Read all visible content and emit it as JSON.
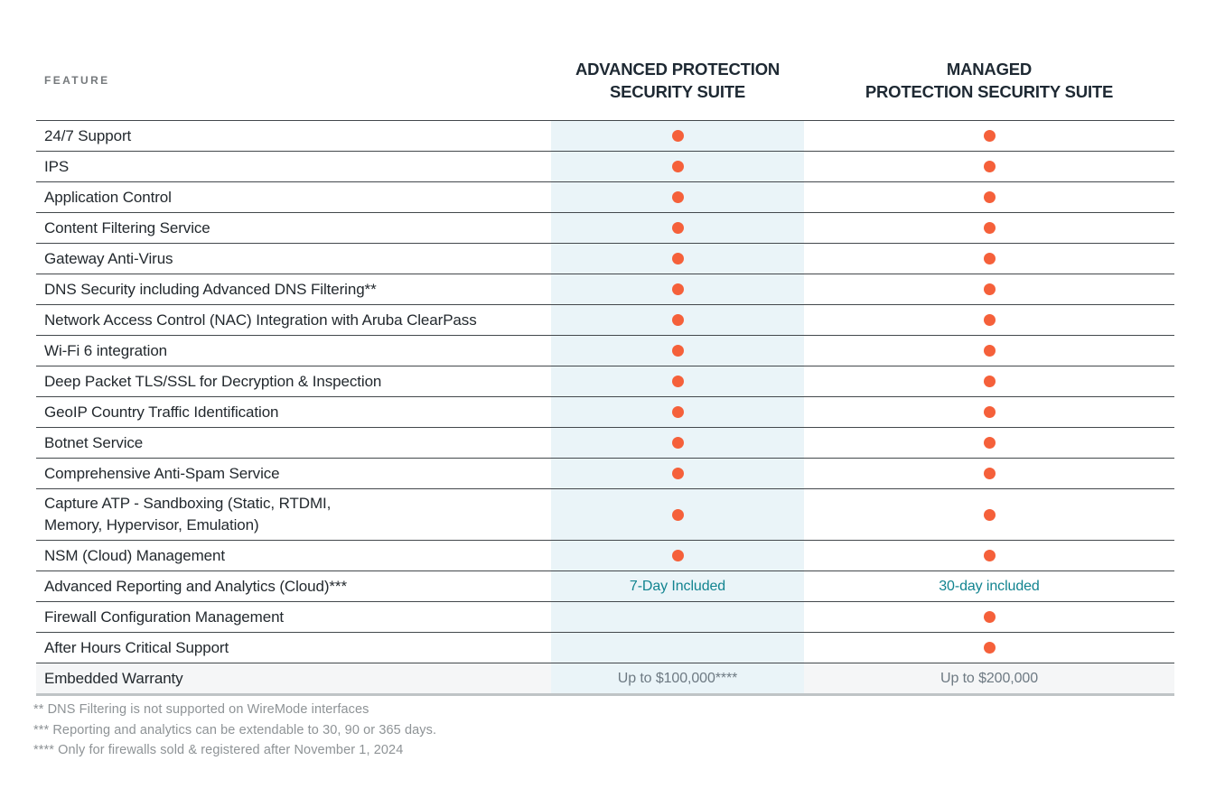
{
  "table": {
    "feature_header": "FEATURE",
    "columns": [
      {
        "id": "advanced",
        "label": "ADVANCED PROTECTION\nSECURITY SUITE"
      },
      {
        "id": "managed",
        "label": "MANAGED\nPROTECTION SECURITY SUITE"
      }
    ],
    "rows": [
      {
        "feature": "24/7 Support",
        "advanced": {
          "type": "dot"
        },
        "managed": {
          "type": "dot"
        }
      },
      {
        "feature": "IPS",
        "advanced": {
          "type": "dot"
        },
        "managed": {
          "type": "dot"
        }
      },
      {
        "feature": "Application Control",
        "advanced": {
          "type": "dot"
        },
        "managed": {
          "type": "dot"
        }
      },
      {
        "feature": "Content Filtering Service",
        "advanced": {
          "type": "dot"
        },
        "managed": {
          "type": "dot"
        }
      },
      {
        "feature": "Gateway Anti-Virus",
        "advanced": {
          "type": "dot"
        },
        "managed": {
          "type": "dot"
        }
      },
      {
        "feature": "DNS Security including Advanced DNS Filtering**",
        "advanced": {
          "type": "dot"
        },
        "managed": {
          "type": "dot"
        }
      },
      {
        "feature": "Network Access Control (NAC) Integration with Aruba ClearPass",
        "advanced": {
          "type": "dot"
        },
        "managed": {
          "type": "dot"
        }
      },
      {
        "feature": "Wi-Fi 6 integration",
        "advanced": {
          "type": "dot"
        },
        "managed": {
          "type": "dot"
        }
      },
      {
        "feature": "Deep Packet TLS/SSL for Decryption & Inspection",
        "advanced": {
          "type": "dot"
        },
        "managed": {
          "type": "dot"
        }
      },
      {
        "feature": "GeoIP Country Traffic Identification",
        "advanced": {
          "type": "dot"
        },
        "managed": {
          "type": "dot"
        }
      },
      {
        "feature": "Botnet Service",
        "advanced": {
          "type": "dot"
        },
        "managed": {
          "type": "dot"
        }
      },
      {
        "feature": "Comprehensive Anti-Spam Service",
        "advanced": {
          "type": "dot"
        },
        "managed": {
          "type": "dot"
        }
      },
      {
        "feature": "Capture ATP -  Sandboxing (Static, RTDMI,\nMemory, Hypervisor, Emulation)",
        "tall": true,
        "advanced": {
          "type": "dot"
        },
        "managed": {
          "type": "dot"
        }
      },
      {
        "feature": "NSM (Cloud) Management",
        "advanced": {
          "type": "dot"
        },
        "managed": {
          "type": "dot"
        }
      },
      {
        "feature": "Advanced Reporting and Analytics (Cloud)***",
        "advanced": {
          "type": "text",
          "text": "7-Day Included",
          "color": "teal"
        },
        "managed": {
          "type": "text",
          "text": "30-day included",
          "color": "teal"
        }
      },
      {
        "feature": "Firewall Configuration Management",
        "advanced": {
          "type": "none"
        },
        "managed": {
          "type": "dot"
        }
      },
      {
        "feature": "After Hours Critical Support",
        "advanced": {
          "type": "none"
        },
        "managed": {
          "type": "dot"
        }
      },
      {
        "feature": "Embedded Warranty",
        "shaded": true,
        "advanced": {
          "type": "text",
          "text": "Up to $100,000****",
          "color": "gray"
        },
        "managed": {
          "type": "text",
          "text": "Up to $200,000",
          "color": "gray"
        }
      }
    ]
  },
  "footnotes": [
    "** DNS Filtering is not supported on WireMode interfaces",
    "*** Reporting and analytics can be extendable to 30, 90 or 365 days.",
    "**** Only for firewalls sold & registered after November 1, 2024"
  ],
  "colors": {
    "included_dot_orange": "#f5603a",
    "highlight_column_blue": "#eaf4f8",
    "teal_value_text": "#128490",
    "gray_value_text": "#6e7a83",
    "header_text": "#1e2933",
    "row_divider": "#43484c",
    "footnote_gray": "#8e9396"
  },
  "icons": {
    "included_dot": "filled-circle"
  }
}
